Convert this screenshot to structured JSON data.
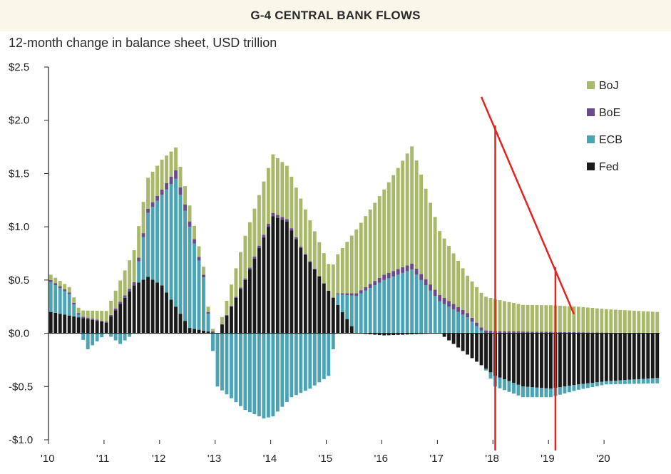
{
  "header": {
    "title": "G-4 CENTRAL BANK FLOWS",
    "subtitle": "12-month change in balance sheet, USD trillion"
  },
  "chart_data": {
    "type": "bar",
    "stacked": true,
    "title": "G-4 CENTRAL BANK FLOWS",
    "subtitle": "12-month change in balance sheet, USD trillion",
    "ylim": [
      -1.0,
      2.5
    ],
    "yticks": [
      2.5,
      2.0,
      1.5,
      1.0,
      0.5,
      0.0,
      -0.5,
      -1.0
    ],
    "ytick_labels": [
      "$2.5",
      "$2.0",
      "$1.5",
      "$1.0",
      "$0.5",
      "$0.0",
      "-$0.5",
      "-$1.0"
    ],
    "xticks": [
      "'10",
      "'11",
      "'12",
      "'13",
      "'14",
      "'15",
      "'16",
      "'17",
      "'18",
      "'19",
      "'20"
    ],
    "x_start": "2010-01",
    "frequency": "monthly",
    "legend_position": "top-right",
    "grid": false,
    "series": [
      {
        "name": "BoJ",
        "color": "#a9b96a",
        "knots": [
          [
            0,
            0.05
          ],
          [
            6,
            0.05
          ],
          [
            12,
            0.1
          ],
          [
            18,
            0.3
          ],
          [
            24,
            0.28
          ],
          [
            30,
            0.15
          ],
          [
            36,
            0.0
          ],
          [
            42,
            0.4
          ],
          [
            48,
            0.55
          ],
          [
            54,
            0.45
          ],
          [
            60,
            0.25
          ],
          [
            66,
            0.6
          ],
          [
            72,
            0.8
          ],
          [
            78,
            1.1
          ],
          [
            84,
            0.6
          ],
          [
            90,
            0.35
          ],
          [
            96,
            0.3
          ],
          [
            102,
            0.25
          ],
          [
            108,
            0.25
          ],
          [
            114,
            0.24
          ],
          [
            120,
            0.22
          ],
          [
            131,
            0.2
          ]
        ]
      },
      {
        "name": "BoE",
        "color": "#6b4a8c",
        "knots": [
          [
            0,
            0.02
          ],
          [
            12,
            0.01
          ],
          [
            24,
            0.05
          ],
          [
            27,
            0.08
          ],
          [
            30,
            0.05
          ],
          [
            36,
            0.0
          ],
          [
            48,
            0.03
          ],
          [
            60,
            0.0
          ],
          [
            72,
            0.05
          ],
          [
            84,
            0.06
          ],
          [
            96,
            0.02
          ],
          [
            131,
            0.0
          ]
        ]
      },
      {
        "name": "ECB",
        "color": "#4aa4b4",
        "knots": [
          [
            0,
            0.28
          ],
          [
            4,
            0.2
          ],
          [
            8,
            -0.15
          ],
          [
            12,
            0.0
          ],
          [
            15,
            -0.1
          ],
          [
            18,
            0.0
          ],
          [
            21,
            0.6
          ],
          [
            24,
            0.85
          ],
          [
            27,
            1.2
          ],
          [
            30,
            0.95
          ],
          [
            33,
            0.5
          ],
          [
            36,
            -0.5
          ],
          [
            42,
            -0.72
          ],
          [
            46,
            -0.8
          ],
          [
            48,
            -0.78
          ],
          [
            52,
            -0.6
          ],
          [
            56,
            -0.52
          ],
          [
            60,
            -0.4
          ],
          [
            62,
            0.1
          ],
          [
            66,
            0.35
          ],
          [
            72,
            0.5
          ],
          [
            78,
            0.6
          ],
          [
            84,
            0.3
          ],
          [
            90,
            0.15
          ],
          [
            96,
            -0.1
          ],
          [
            102,
            -0.1
          ],
          [
            108,
            -0.08
          ],
          [
            114,
            -0.05
          ],
          [
            120,
            -0.03
          ],
          [
            131,
            -0.05
          ]
        ]
      },
      {
        "name": "Fed",
        "color": "#1a1a1a",
        "knots": [
          [
            0,
            0.2
          ],
          [
            6,
            0.15
          ],
          [
            12,
            0.1
          ],
          [
            18,
            0.45
          ],
          [
            21,
            0.53
          ],
          [
            24,
            0.45
          ],
          [
            27,
            0.25
          ],
          [
            30,
            0.05
          ],
          [
            36,
            0.0
          ],
          [
            42,
            0.5
          ],
          [
            48,
            1.1
          ],
          [
            51,
            1.05
          ],
          [
            54,
            0.8
          ],
          [
            60,
            0.4
          ],
          [
            66,
            0.0
          ],
          [
            72,
            -0.02
          ],
          [
            84,
            0.0
          ],
          [
            96,
            -0.4
          ],
          [
            102,
            -0.5
          ],
          [
            108,
            -0.52
          ],
          [
            114,
            -0.48
          ],
          [
            120,
            -0.45
          ],
          [
            131,
            -0.42
          ]
        ]
      }
    ],
    "annotation_lines": [
      {
        "from": [
          "2017-10",
          2.22
        ],
        "to": [
          "2019-06",
          0.18
        ],
        "color": "#e52222"
      },
      {
        "from": [
          "2018-01",
          -1.1
        ],
        "to": [
          "2018-01",
          1.95
        ],
        "color": "#e52222"
      },
      {
        "from": [
          "2019-02",
          -1.1
        ],
        "to": [
          "2019-02",
          0.62
        ],
        "color": "#e52222"
      }
    ]
  }
}
